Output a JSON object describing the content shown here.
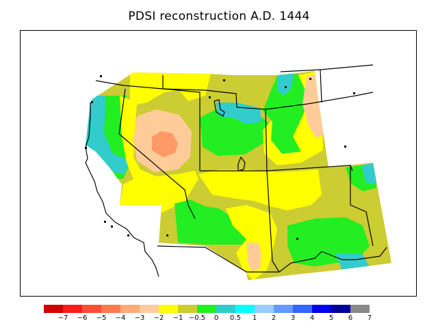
{
  "title": "PDSI reconstruction A.D. 1444",
  "legend": {
    "colors": [
      "#cc0000",
      "#ff1a1a",
      "#ff4d33",
      "#ff7a4d",
      "#ffaa77",
      "#ffcca0",
      "#ffff00",
      "#cccc33",
      "#22ee22",
      "#33cccc",
      "#00ffff",
      "#99ccff",
      "#6699ff",
      "#3366ff",
      "#0000ee",
      "#000099",
      "#888888"
    ],
    "labels": [
      "−7",
      "−6",
      "−5",
      "−4",
      "−3",
      "−2",
      "−1",
      "−0.5",
      "0",
      "0.5",
      "1",
      "2",
      "3",
      "4",
      "5",
      "6",
      "7"
    ]
  },
  "map": {
    "field_colors": {
      "pdsi_m3": "#ff9966",
      "pdsi_m2": "#ffcc99",
      "pdsi_m1": "#ffff00",
      "pdsi_m05": "#cccc33",
      "pdsi_0": "#22ee22",
      "pdsi_05": "#33cccc",
      "pdsi_1": "#00ffff"
    }
  }
}
